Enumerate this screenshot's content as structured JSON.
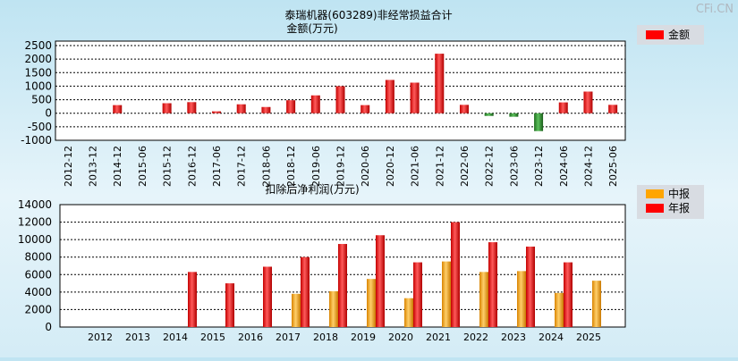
{
  "watermark": "CFi.CN",
  "chart_data": [
    {
      "type": "bar",
      "title": "泰瑞机器(603289)非经常损益合计",
      "subtitle": "金额(万元)",
      "categories": [
        "2012-12",
        "2013-12",
        "2014-12",
        "2015-06",
        "2015-12",
        "2016-12",
        "2017-06",
        "2017-12",
        "2018-06",
        "2018-12",
        "2019-06",
        "2019-12",
        "2020-06",
        "2020-12",
        "2021-06",
        "2021-12",
        "2022-06",
        "2022-12",
        "2023-06",
        "2023-12",
        "2024-06",
        "2024-12",
        "2025-06"
      ],
      "series": [
        {
          "name": "金额",
          "color": "#ff0000",
          "negative_color": "#2e9b2e",
          "values": [
            null,
            null,
            300,
            null,
            370,
            410,
            70,
            330,
            230,
            480,
            660,
            1000,
            300,
            1230,
            1130,
            2200,
            310,
            -100,
            -130,
            -660,
            400,
            800,
            310
          ]
        }
      ],
      "ylim": [
        -1000,
        2500
      ],
      "yticks": [
        2500,
        2000,
        1500,
        1000,
        500,
        0,
        -500,
        -1000
      ],
      "legend_position": "top-right",
      "grid": true
    },
    {
      "type": "bar",
      "title": "扣除后净利润(万元)",
      "categories": [
        "2012",
        "2013",
        "2014",
        "2015",
        "2016",
        "2017",
        "2018",
        "2019",
        "2020",
        "2021",
        "2022",
        "2023",
        "2024",
        "2025"
      ],
      "series": [
        {
          "name": "中报",
          "color": "#ffa500",
          "values": [
            null,
            null,
            null,
            null,
            null,
            3800,
            4100,
            5500,
            3300,
            7500,
            6300,
            6400,
            3900,
            5300
          ]
        },
        {
          "name": "年报",
          "color": "#ff0000",
          "values": [
            null,
            null,
            6300,
            5000,
            6900,
            8000,
            9500,
            10500,
            7400,
            12000,
            9700,
            9200,
            7400,
            null
          ]
        }
      ],
      "ylim": [
        0,
        14000
      ],
      "yticks": [
        14000,
        12000,
        10000,
        8000,
        6000,
        4000,
        2000,
        0
      ],
      "legend_position": "top-right",
      "grid": true
    }
  ]
}
